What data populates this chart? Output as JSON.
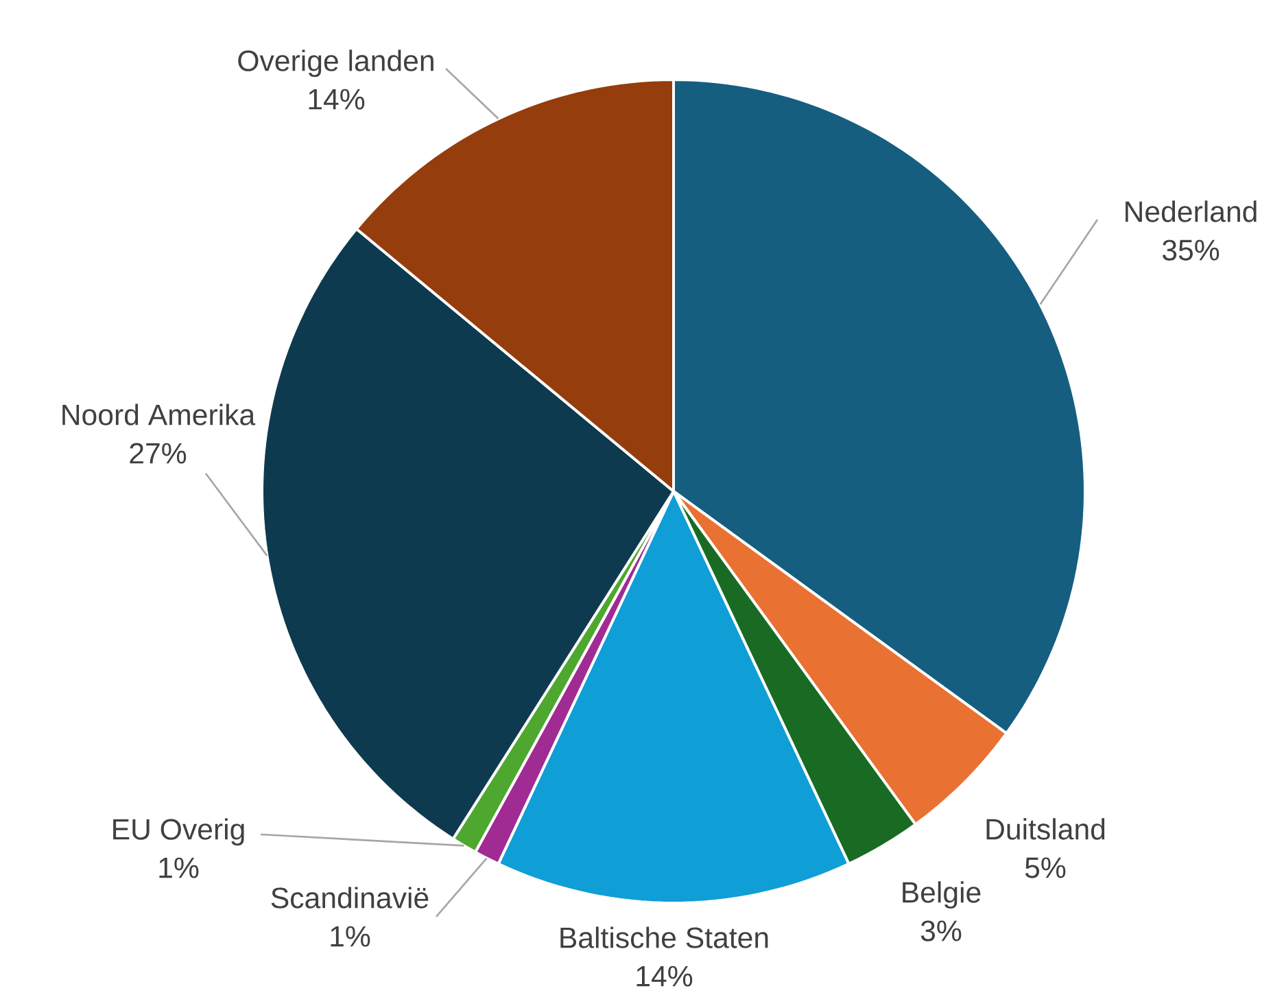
{
  "chart_data": {
    "type": "pie",
    "categories": [
      "Nederland",
      "Duitsland",
      "Belgie",
      "Baltische Staten",
      "Scandinavië",
      "EU Overig",
      "Noord Amerika",
      "Overige landen"
    ],
    "values": [
      35,
      5,
      3,
      14,
      1,
      1,
      27,
      14
    ],
    "value_labels": [
      "35%",
      "5%",
      "3%",
      "14%",
      "1%",
      "1%",
      "27%",
      "14%"
    ],
    "colors": [
      "#165e80",
      "#e97132",
      "#196b24",
      "#0f9ed5",
      "#a02b93",
      "#4ea72e",
      "#0e3a4f",
      "#953d0c"
    ]
  }
}
